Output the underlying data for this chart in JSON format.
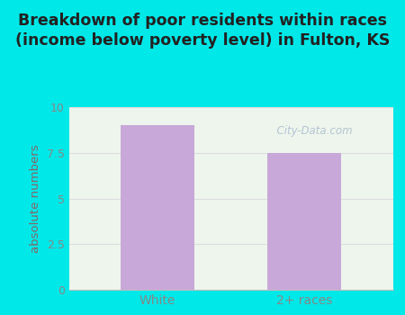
{
  "categories": [
    "White",
    "2+ races"
  ],
  "values": [
    9.0,
    7.5
  ],
  "bar_color": "#c8a8d8",
  "title_line1": "Breakdown of poor residents within races",
  "title_line2": "(income below poverty level) in Fulton, KS",
  "ylabel": "absolute numbers",
  "ylim": [
    0,
    10
  ],
  "yticks": [
    0,
    2.5,
    5,
    7.5,
    10
  ],
  "ytick_labels": [
    "0",
    "2.5",
    "5",
    "7.5",
    "10"
  ],
  "outer_bg_color": "#00e8e8",
  "inner_bg_color": "#edf5ed",
  "title_color": "#222222",
  "title_fontsize": 12.5,
  "ylabel_color": "#886666",
  "ylabel_fontsize": 9.5,
  "tick_color": "#888888",
  "tick_fontsize": 9,
  "watermark_text": "  City-Data.com",
  "watermark_color": "#aabbcc",
  "grid_color": "#dddddd"
}
